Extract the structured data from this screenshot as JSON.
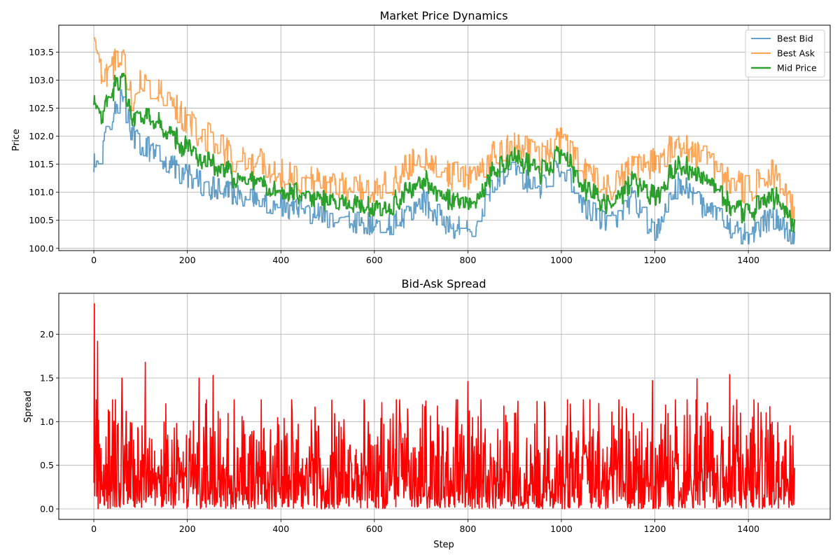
{
  "chart_data": [
    {
      "type": "line",
      "title": "Market Price Dynamics",
      "xlabel": "",
      "ylabel": "Price",
      "xlim": [
        -75,
        1575
      ],
      "ylim": [
        99.96,
        103.98
      ],
      "xticks": [
        0,
        200,
        400,
        600,
        800,
        1000,
        1200,
        1400
      ],
      "xtick_labels": [
        "0",
        "200",
        "400",
        "600",
        "800",
        "1000",
        "1200",
        "1400"
      ],
      "yticks": [
        100.0,
        100.5,
        101.0,
        101.5,
        102.0,
        102.5,
        103.0,
        103.5
      ],
      "ytick_labels": [
        "100.0",
        "100.5",
        "101.0",
        "101.5",
        "102.0",
        "102.5",
        "103.0",
        "103.5"
      ],
      "grid": true,
      "legend_position": "top-right",
      "n_steps": 1500,
      "series": [
        {
          "name": "Best Bid",
          "color": "#1f77b4",
          "opacity": 0.7,
          "approx_trend": {
            "x": [
              0,
              20,
              40,
              60,
              80,
              100,
              150,
              200,
              250,
              300,
              350,
              400,
              450,
              500,
              550,
              600,
              650,
              700,
              750,
              800,
              850,
              900,
              950,
              1000,
              1050,
              1100,
              1150,
              1200,
              1250,
              1300,
              1350,
              1400,
              1450,
              1500
            ],
            "y": [
              101.5,
              101.9,
              102.4,
              102.8,
              102.1,
              101.9,
              101.6,
              101.3,
              101.1,
              101.0,
              100.9,
              100.8,
              100.7,
              100.6,
              100.5,
              100.45,
              100.5,
              100.9,
              100.5,
              100.3,
              101.1,
              101.4,
              101.1,
              101.5,
              100.8,
              100.4,
              100.9,
              100.3,
              101.2,
              100.8,
              100.5,
              100.2,
              100.6,
              100.15
            ]
          }
        },
        {
          "name": "Best Ask",
          "color": "#ff7f0e",
          "opacity": 0.7,
          "approx_trend": {
            "x": [
              0,
              20,
              40,
              60,
              80,
              100,
              150,
              200,
              250,
              300,
              350,
              400,
              450,
              500,
              550,
              600,
              650,
              700,
              750,
              800,
              850,
              900,
              950,
              1000,
              1050,
              1100,
              1150,
              1200,
              1250,
              1300,
              1350,
              1400,
              1450,
              1500
            ],
            "y": [
              103.5,
              102.9,
              103.2,
              103.5,
              102.6,
              102.9,
              102.7,
              102.2,
              101.9,
              101.6,
              101.5,
              101.3,
              101.2,
              101.1,
              101.1,
              101.0,
              101.2,
              101.7,
              101.3,
              101.2,
              101.6,
              101.8,
              101.6,
              101.9,
              101.3,
              101.0,
              101.4,
              101.5,
              101.9,
              101.6,
              101.2,
              101.0,
              101.3,
              100.6
            ]
          }
        },
        {
          "name": "Mid Price",
          "color": "#2ca02c",
          "opacity": 1.0,
          "approx_trend": {
            "x": [
              0,
              20,
              40,
              60,
              80,
              100,
              150,
              200,
              250,
              300,
              350,
              400,
              450,
              500,
              550,
              600,
              650,
              700,
              750,
              800,
              850,
              900,
              950,
              1000,
              1050,
              1100,
              1150,
              1200,
              1250,
              1300,
              1350,
              1400,
              1450,
              1500
            ],
            "y": [
              102.4,
              102.3,
              102.7,
              103.2,
              102.3,
              102.4,
              102.1,
              101.8,
              101.5,
              101.3,
              101.2,
              101.0,
              100.95,
              100.85,
              100.75,
              100.7,
              100.85,
              101.3,
              100.9,
              100.75,
              101.35,
              101.6,
              101.35,
              101.7,
              101.05,
              100.7,
              101.15,
              100.9,
              101.55,
              101.2,
              100.85,
              100.6,
              100.95,
              100.35
            ]
          }
        }
      ]
    },
    {
      "type": "line",
      "title": "Bid-Ask Spread",
      "xlabel": "Step",
      "ylabel": "Spread",
      "xlim": [
        -75,
        1575
      ],
      "ylim": [
        -0.12,
        2.47
      ],
      "xticks": [
        0,
        200,
        400,
        600,
        800,
        1000,
        1200,
        1400
      ],
      "xtick_labels": [
        "0",
        "200",
        "400",
        "600",
        "800",
        "1000",
        "1200",
        "1400"
      ],
      "yticks": [
        0.0,
        0.5,
        1.0,
        1.5,
        2.0
      ],
      "ytick_labels": [
        "0.0",
        "0.5",
        "1.0",
        "1.5",
        "2.0"
      ],
      "grid": true,
      "n_steps": 1500,
      "series": [
        {
          "color": "#ff0000",
          "peaks": [
            {
              "x": 1,
              "y": 2.35
            },
            {
              "x": 8,
              "y": 1.92
            },
            {
              "x": 110,
              "y": 1.68
            },
            {
              "x": 255,
              "y": 1.53
            },
            {
              "x": 1360,
              "y": 1.54
            },
            {
              "x": 800,
              "y": 1.46
            },
            {
              "x": 1195,
              "y": 1.47
            },
            {
              "x": 1290,
              "y": 1.49
            },
            {
              "x": 60,
              "y": 1.5
            },
            {
              "x": 225,
              "y": 1.5
            }
          ]
        }
      ]
    }
  ]
}
